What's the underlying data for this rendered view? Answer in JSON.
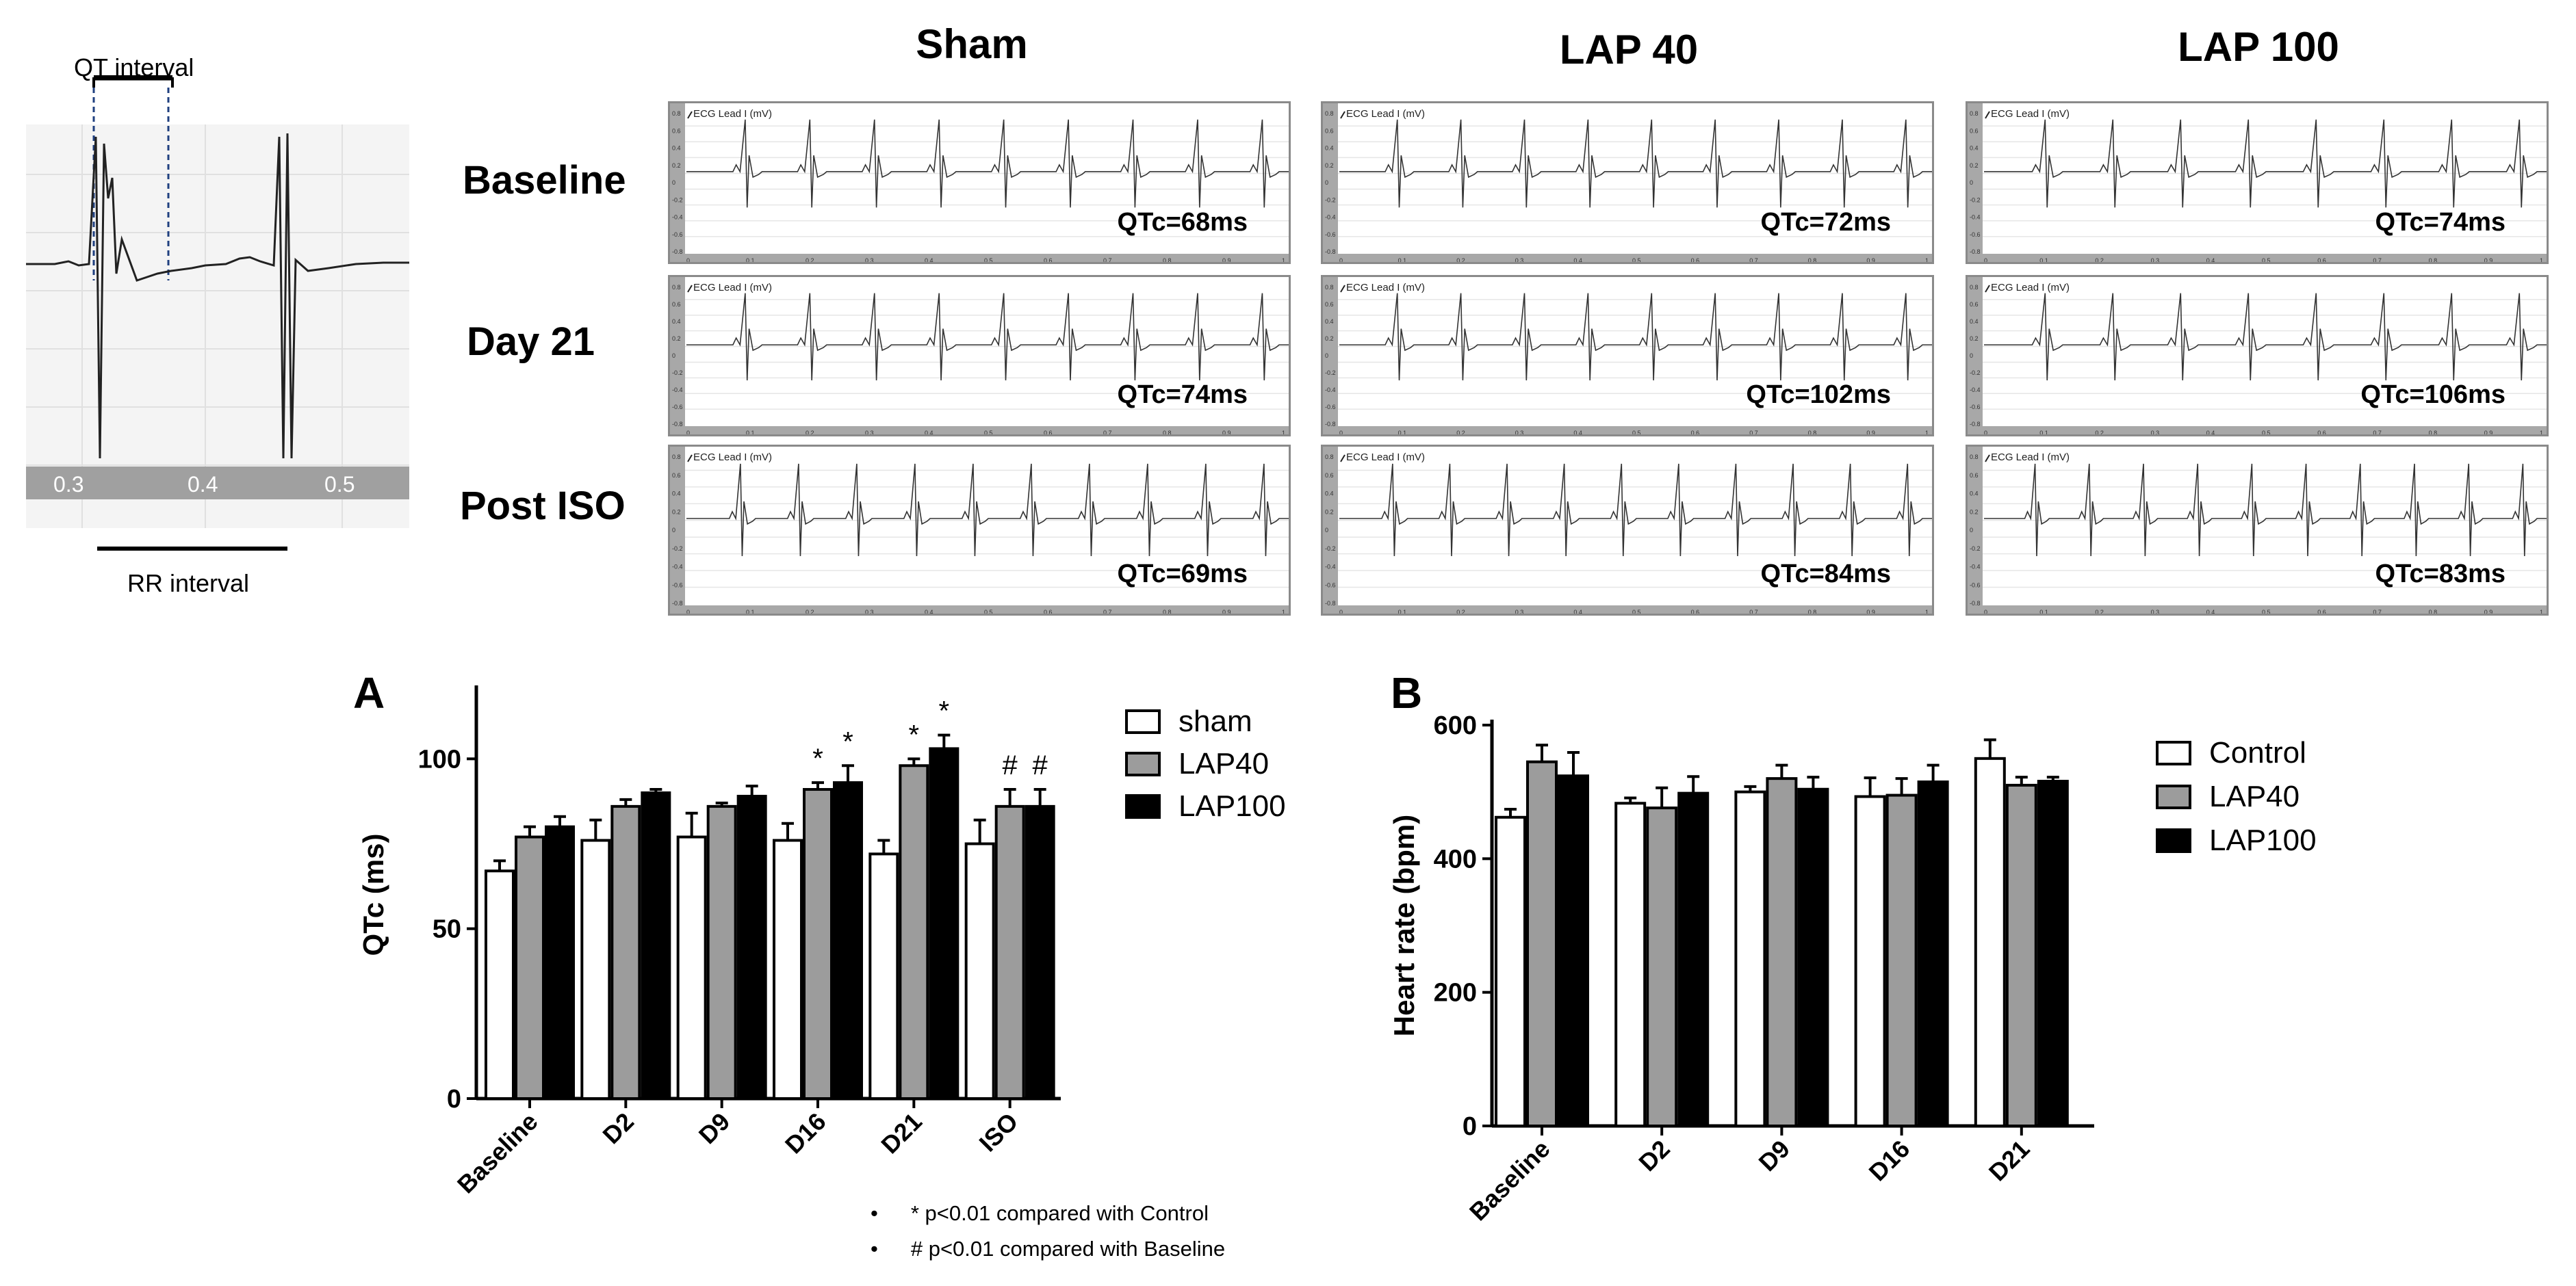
{
  "schematic": {
    "qt_label": "QT interval",
    "rr_label": "RR interval",
    "ticks": [
      "0.3",
      "0.4",
      "0.5"
    ]
  },
  "ecg_grid": {
    "columns": [
      "Sham",
      "LAP 40",
      "LAP 100"
    ],
    "rows": [
      "Baseline",
      "Day 21",
      "Post ISO"
    ],
    "panel_label": "ECG Lead I (mV)",
    "qtc": [
      [
        "QTc=68ms",
        "QTc=72ms",
        "QTc=74ms"
      ],
      [
        "QTc=74ms",
        "QTc=102ms",
        "QTc=106ms"
      ],
      [
        "QTc=69ms",
        "QTc=84ms",
        "QTc=83ms"
      ]
    ],
    "y_ticks": [
      "0.8",
      "0.6",
      "0.4",
      "0.2",
      "0",
      "-0.2",
      "-0.4",
      "-0.6",
      "-0.8"
    ],
    "x_ticks": [
      "0",
      "0.1",
      "0.2",
      "0.3",
      "0.4",
      "0.5",
      "0.6",
      "0.7",
      "0.8",
      "0.9",
      "1"
    ]
  },
  "chart_data": [
    {
      "type": "bar",
      "panel": "A",
      "ylabel": "QTc (ms)",
      "xlabel": "",
      "categories": [
        "Baseline",
        "D2",
        "D9",
        "D16",
        "D21",
        "ISO"
      ],
      "ylim": [
        0,
        120
      ],
      "yticks": [
        0,
        50,
        100
      ],
      "series": [
        {
          "name": "sham",
          "color": "#ffffff",
          "values": [
            67,
            76,
            77,
            76,
            72,
            75
          ],
          "errors": [
            3,
            6,
            7,
            5,
            4,
            7
          ]
        },
        {
          "name": "LAP40",
          "color": "#9c9c9c",
          "values": [
            77,
            86,
            86,
            91,
            98,
            86
          ],
          "errors": [
            3,
            2,
            1,
            2,
            2,
            5
          ]
        },
        {
          "name": "LAP100",
          "color": "#000000",
          "values": [
            80,
            90,
            89,
            93,
            103,
            86
          ],
          "errors": [
            3,
            1,
            3,
            5,
            4,
            5
          ]
        }
      ],
      "annotations": [
        {
          "category": "D16",
          "series": "LAP40",
          "text": "*"
        },
        {
          "category": "D16",
          "series": "LAP100",
          "text": "*"
        },
        {
          "category": "D21",
          "series": "LAP40",
          "text": "*"
        },
        {
          "category": "D21",
          "series": "LAP100",
          "text": "*"
        },
        {
          "category": "ISO",
          "series": "LAP40",
          "text": "#"
        },
        {
          "category": "ISO",
          "series": "LAP100",
          "text": "#"
        }
      ],
      "legend": [
        "sham",
        "LAP40",
        "LAP100"
      ],
      "footnotes": [
        "* p<0.01 compared with Control",
        "# p<0.01 compared with Baseline"
      ]
    },
    {
      "type": "bar",
      "panel": "B",
      "ylabel": "Heart rate (bpm)",
      "xlabel": "",
      "categories": [
        "Baseline",
        "D2",
        "D9",
        "D16",
        "D21"
      ],
      "ylim": [
        0,
        600
      ],
      "yticks": [
        0,
        200,
        400,
        600
      ],
      "series": [
        {
          "name": "Control",
          "color": "#ffffff",
          "values": [
            462,
            483,
            500,
            493,
            550
          ],
          "errors": [
            12,
            8,
            8,
            28,
            28
          ]
        },
        {
          "name": "LAP40",
          "color": "#9c9c9c",
          "values": [
            545,
            476,
            520,
            495,
            510
          ],
          "errors": [
            25,
            30,
            20,
            25,
            12
          ]
        },
        {
          "name": "LAP100",
          "color": "#000000",
          "values": [
            524,
            498,
            504,
            515,
            516
          ],
          "errors": [
            35,
            25,
            18,
            25,
            6
          ]
        }
      ],
      "legend": [
        "Control",
        "LAP40",
        "LAP100"
      ]
    }
  ]
}
